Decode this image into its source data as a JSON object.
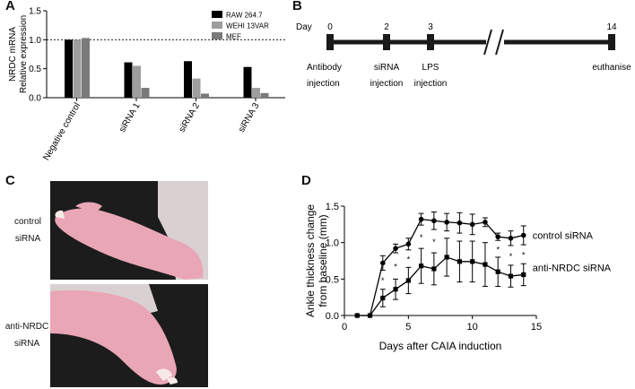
{
  "panels": {
    "a": {
      "letter": "A"
    },
    "b": {
      "letter": "B"
    },
    "c": {
      "letter": "C",
      "top_label_1": "control",
      "top_label_2": "siRNA",
      "bottom_label_1": "anti-NRDC",
      "bottom_label_2": "siRNA",
      "colors": {
        "background": "#1c1c1c",
        "paw": "#e9a6b6",
        "fur": "#eee6e6",
        "nail": "#f7eae6"
      }
    },
    "d": {
      "letter": "D"
    }
  },
  "chart_data": [
    {
      "type": "bar",
      "panel": "A",
      "ylabel_1": "NRDC mRNA",
      "ylabel_2": "Relative expression",
      "ylim": [
        0,
        1.5
      ],
      "yticks": [
        "0.0",
        "0.5",
        "1.0",
        "1.5"
      ],
      "categories": [
        "Negative control",
        "siRNA 1",
        "siRNA 2",
        "siRNA 3"
      ],
      "reference_line": 1.0,
      "legend_position": "top-right",
      "series": [
        {
          "name": "RAW 264.7",
          "color": "#000000",
          "values": [
            1.0,
            0.61,
            0.63,
            0.53
          ]
        },
        {
          "name": "WEHI 13VAR",
          "color": "#9e9e9e",
          "values": [
            1.0,
            0.55,
            0.33,
            0.17
          ]
        },
        {
          "name": "MEF",
          "color": "#7a7a7a",
          "values": [
            1.03,
            0.17,
            0.07,
            0.08
          ]
        }
      ]
    },
    {
      "type": "timeline",
      "panel": "B",
      "axis_label": "Day",
      "ticks": [
        {
          "day": "0",
          "label_1": "Antibody",
          "label_2": "injection"
        },
        {
          "day": "2",
          "label_1": "siRNA",
          "label_2": "injection"
        },
        {
          "day": "3",
          "label_1": "LPS",
          "label_2": "injection"
        },
        {
          "day": "14",
          "label_1": "euthanise",
          "label_2": ""
        }
      ],
      "axis_break": true
    },
    {
      "type": "line",
      "panel": "D",
      "xlabel": "Days after CAIA induction",
      "ylabel_1": "Ankle thickness change",
      "ylabel_2": "from baseline (mm)",
      "xlim": [
        0,
        15
      ],
      "ylim": [
        0,
        1.5
      ],
      "xticks": [
        "0",
        "5",
        "10",
        "15"
      ],
      "yticks": [
        "0.0",
        "0.5",
        "1.0",
        "1.5"
      ],
      "series": [
        {
          "name": "control siRNA",
          "marker": "circle",
          "x": [
            1,
            2,
            3,
            4,
            5,
            6,
            7,
            8,
            9,
            10,
            11,
            12,
            13,
            14
          ],
          "y": [
            0,
            0,
            0.72,
            0.92,
            0.98,
            1.32,
            1.3,
            1.28,
            1.27,
            1.25,
            1.28,
            1.08,
            1.06,
            1.1
          ],
          "err": [
            0,
            0,
            0.1,
            0.06,
            0.08,
            0.08,
            0.12,
            0.12,
            0.14,
            0.14,
            0.06,
            0.05,
            0.1,
            0.13
          ]
        },
        {
          "name": "anti-NRDC siRNA",
          "marker": "square",
          "x": [
            1,
            2,
            3,
            4,
            5,
            6,
            7,
            8,
            9,
            10,
            11,
            12,
            13,
            14
          ],
          "y": [
            0,
            0,
            0.24,
            0.36,
            0.48,
            0.68,
            0.64,
            0.8,
            0.74,
            0.74,
            0.7,
            0.6,
            0.54,
            0.56
          ],
          "err": [
            0,
            0,
            0.12,
            0.14,
            0.18,
            0.24,
            0.22,
            0.26,
            0.28,
            0.28,
            0.3,
            0.2,
            0.15,
            0.15
          ]
        }
      ],
      "annotations": {
        "significance_mark": "*",
        "significant_days": [
          3,
          4,
          5,
          6,
          7,
          12,
          13,
          14
        ]
      }
    }
  ]
}
